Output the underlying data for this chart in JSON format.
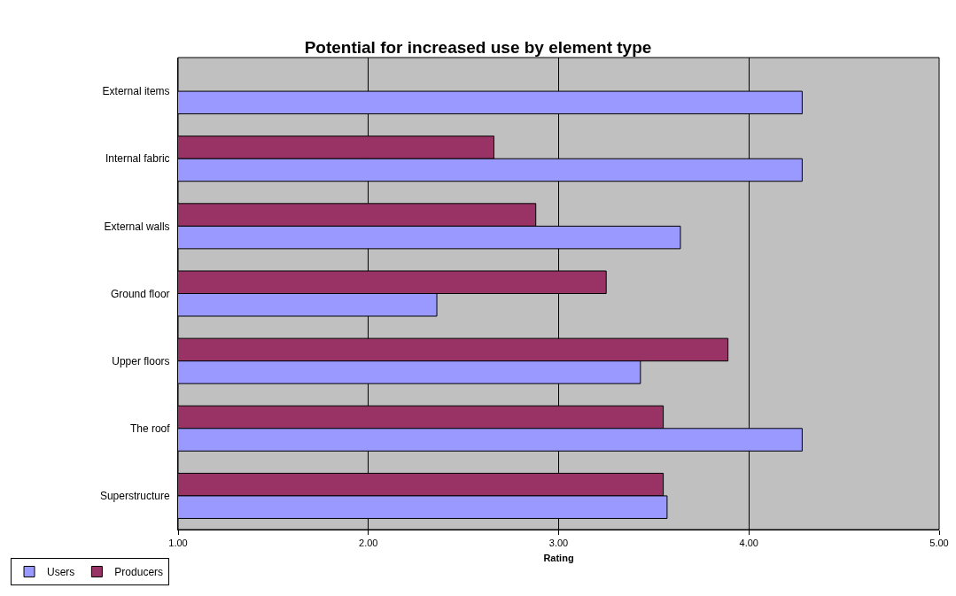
{
  "chart_data": {
    "type": "bar",
    "orientation": "horizontal",
    "title": "Potential for increased use by element type",
    "xlabel": "Rating",
    "categories": [
      "External items",
      "Internal fabric",
      "External walls",
      "Ground floor",
      "Upper floors",
      "The roof",
      "Superstructure"
    ],
    "series": [
      {
        "name": "Users",
        "color": "#9999ff",
        "values": [
          4.28,
          4.28,
          3.64,
          2.36,
          3.43,
          4.28,
          3.57
        ]
      },
      {
        "name": "Producers",
        "color": "#993366",
        "values": [
          null,
          2.66,
          2.88,
          3.25,
          3.89,
          3.55,
          3.55
        ]
      }
    ],
    "xlim": [
      1,
      5
    ],
    "xticks": [
      {
        "value": 1,
        "label": "1.00"
      },
      {
        "value": 2,
        "label": "2.00"
      },
      {
        "value": 3,
        "label": "3.00"
      },
      {
        "value": 4,
        "label": "4.00"
      },
      {
        "value": 5,
        "label": "5.00"
      }
    ],
    "grid": "x",
    "legend": "bottom left"
  }
}
